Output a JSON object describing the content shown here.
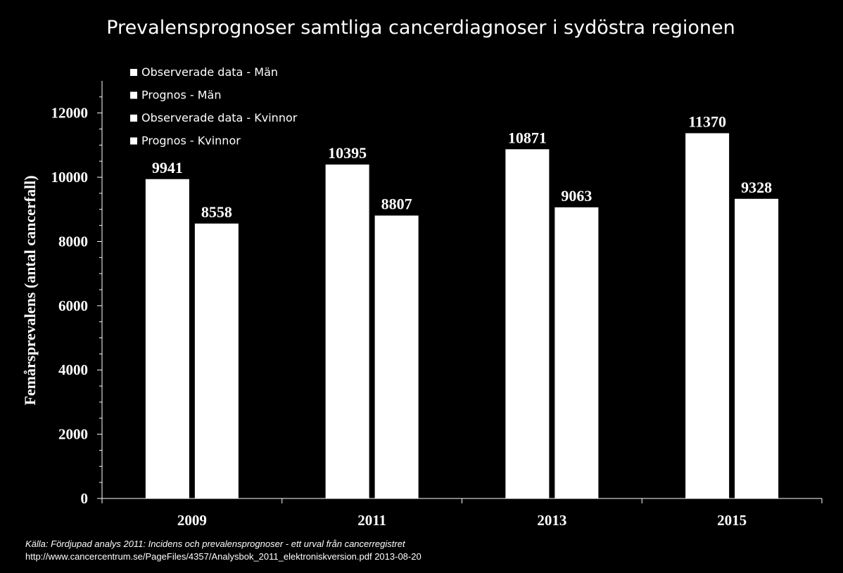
{
  "chart_data": {
    "type": "bar",
    "title": "Prevalensprognoser samtliga cancerdiagnoser i sydöstra regionen",
    "ylabel": "Femårsprevalens (antal cancerfall)",
    "xlabel": "",
    "categories": [
      "2009",
      "2011",
      "2013",
      "2015"
    ],
    "series": [
      {
        "name": "Observerade data - Män",
        "values": [
          9941,
          null,
          null,
          null
        ]
      },
      {
        "name": "Prognos - Män",
        "values": [
          null,
          10395,
          10871,
          11370
        ]
      },
      {
        "name": "Observerade data - Kvinnor",
        "values": [
          8558,
          null,
          null,
          null
        ]
      },
      {
        "name": "Prognos - Kvinnor",
        "values": [
          null,
          8807,
          9063,
          9328
        ]
      }
    ],
    "data_labels": {
      "2009": [
        "9941",
        "8558"
      ],
      "2011": [
        "10395",
        "8807"
      ],
      "2013": [
        "10871",
        "9063"
      ],
      "2015": [
        "11370",
        "9328"
      ]
    },
    "ylim": [
      0,
      13000
    ],
    "yticks": [
      "0",
      "2000",
      "4000",
      "6000",
      "8000",
      "10000",
      "12000"
    ],
    "grid": false,
    "legend": "top-left",
    "colors": {
      "background": "#000000",
      "bars": "#ffffff",
      "text": "#ffffff"
    }
  },
  "source": {
    "line1": "Källa: Fördjupad analys 2011: Incidens och prevalensprognoser - ett urval från cancerregistret",
    "line2": "http://www.cancercentrum.se/PageFiles/4357/Analysbok_2011_elektroniskversion.pdf 2013-08-20"
  }
}
